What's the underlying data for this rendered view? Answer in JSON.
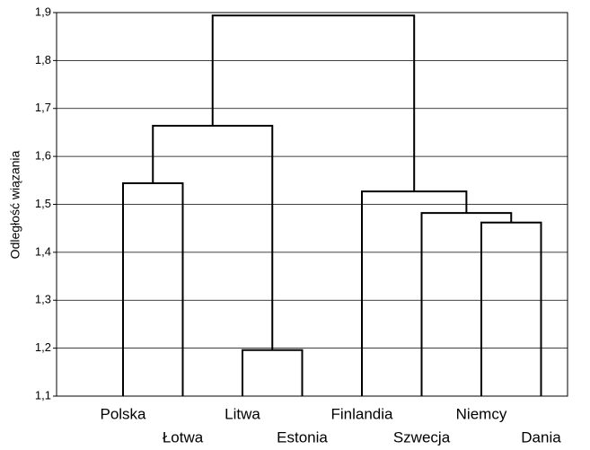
{
  "chart_data": {
    "type": "dendrogram",
    "y_label": "Odległość wiązania",
    "ylim": [
      1.1,
      1.9
    ],
    "yticks": [
      {
        "value": 1.1,
        "label": "1,1"
      },
      {
        "value": 1.2,
        "label": "1,2"
      },
      {
        "value": 1.3,
        "label": "1,3"
      },
      {
        "value": 1.4,
        "label": "1,4"
      },
      {
        "value": 1.5,
        "label": "1,5"
      },
      {
        "value": 1.6,
        "label": "1,6"
      },
      {
        "value": 1.7,
        "label": "1,7"
      },
      {
        "value": 1.8,
        "label": "1,8"
      },
      {
        "value": 1.9,
        "label": "1,9"
      }
    ],
    "grid": true,
    "color": "#000000",
    "tree": {
      "height": 1.894,
      "children": [
        {
          "height": 1.664,
          "children": [
            {
              "height": 1.544,
              "children": [
                {
                  "label": "Polska"
                },
                {
                  "label": "Łotwa"
                }
              ]
            },
            {
              "height": 1.196,
              "children": [
                {
                  "label": "Litwa"
                },
                {
                  "label": "Estonia"
                }
              ]
            }
          ]
        },
        {
          "height": 1.527,
          "children": [
            {
              "label": "Finlandia"
            },
            {
              "height": 1.482,
              "children": [
                {
                  "label": "Szwecja"
                },
                {
                  "height": 1.462,
                  "children": [
                    {
                      "label": "Niemcy"
                    },
                    {
                      "label": "Dania"
                    }
                  ]
                }
              ]
            }
          ]
        }
      ]
    }
  }
}
